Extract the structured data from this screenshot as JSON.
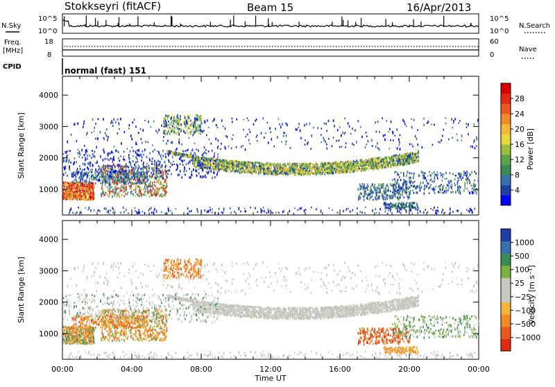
{
  "header": {
    "station": "Stokkseyri (fitACF)",
    "beam": "Beam 15",
    "date": "16/Apr/2013"
  },
  "top_panels": {
    "nsky_label": "N.Sky",
    "nsky_ticks": [
      "10^5",
      "10^0"
    ],
    "nsearch_label": "N.Search",
    "nsearch_ticks": [
      "10^5",
      "10^0"
    ],
    "freq_label": "Freq.",
    "freq_unit": "[MHz]",
    "freq_ticks": [
      "18",
      "8"
    ],
    "nave_label": "Nave",
    "nave_ticks": [
      "60",
      "0"
    ],
    "cpid_label": "CPID",
    "cpid_value": "normal (fast) 151"
  },
  "chart_data": [
    {
      "type": "heatmap",
      "name": "power-panel",
      "xlabel": "",
      "ylabel": "Slant Range [km]",
      "x_ticks": [
        "00:00",
        "04:00",
        "08:00",
        "12:00",
        "16:00",
        "20:00",
        "00:00"
      ],
      "y_ticks": [
        "1000",
        "2000",
        "3000",
        "4000"
      ],
      "xlim_hours": [
        0,
        24
      ],
      "ylim_km": [
        180,
        4600
      ],
      "colorbar_label": "Power [dB]",
      "colorbar_ticks": [
        "4",
        "8",
        "12",
        "16",
        "20",
        "24",
        "28"
      ],
      "colorbar_colors": [
        "#0000ff",
        "#1f3fa8",
        "#3a6fb0",
        "#3c8a55",
        "#5fa04a",
        "#9bbf3c",
        "#e8d83c",
        "#f5b53a",
        "#f08a2a",
        "#ea5a1f",
        "#e02a12",
        "#d80000"
      ]
    },
    {
      "type": "heatmap",
      "name": "velocity-panel",
      "xlabel": "Time UT",
      "ylabel": "Slant Range [km]",
      "x_ticks": [
        "00:00",
        "04:00",
        "08:00",
        "12:00",
        "16:00",
        "20:00",
        "00:00"
      ],
      "y_ticks": [
        "1000",
        "2000",
        "3000",
        "4000"
      ],
      "xlim_hours": [
        0,
        24
      ],
      "ylim_km": [
        180,
        4600
      ],
      "colorbar_label": "Velocity [m s⁻¹]",
      "colorbar_ticks": [
        "1000",
        "500",
        "100",
        "25",
        "−25",
        "−100",
        "−500",
        "−1000"
      ],
      "colorbar_colors": [
        "#1f3fa8",
        "#3a6fb0",
        "#3c8a55",
        "#7cb040",
        "#c8c8c0",
        "#c8c8c0",
        "#f5b53a",
        "#f08a2a",
        "#ea5a1f",
        "#e02a12"
      ]
    }
  ]
}
